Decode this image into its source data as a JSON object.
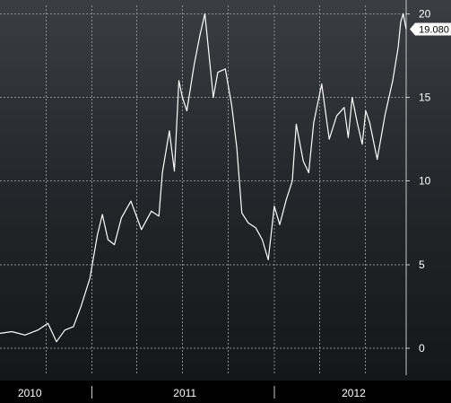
{
  "chart_data": {
    "type": "line",
    "title": "",
    "xlabel": "",
    "ylabel": "",
    "x_tick_labels": [
      "2010",
      "2011",
      "2012"
    ],
    "y_ticks": [
      0,
      5,
      10,
      15,
      20
    ],
    "ylim": [
      -1.6,
      20.5
    ],
    "xlim": [
      "2010-07-01",
      "2012-09-21"
    ],
    "grid": true,
    "last_value_label": "19.080",
    "colors": {
      "line": "#ffffff",
      "grid": "#8a8d92",
      "label_bg": "#ffffff",
      "label_text": "#000000"
    },
    "series": [
      {
        "x": [
          "2010-07-01",
          "2010-07-25",
          "2010-08-20",
          "2010-09-15",
          "2010-10-05",
          "2010-10-22",
          "2010-11-08",
          "2010-11-25",
          "2010-12-10",
          "2010-12-28",
          "2011-01-12",
          "2011-01-22",
          "2011-02-02",
          "2011-02-15",
          "2011-03-01",
          "2011-03-20",
          "2011-04-10",
          "2011-04-30",
          "2011-05-15",
          "2011-05-22",
          "2011-06-05",
          "2011-06-15",
          "2011-06-24",
          "2011-07-01",
          "2011-07-10",
          "2011-07-25",
          "2011-08-05",
          "2011-08-15",
          "2011-09-01",
          "2011-09-10",
          "2011-09-25",
          "2011-10-08",
          "2011-10-18",
          "2011-10-28",
          "2011-11-10",
          "2011-11-25",
          "2011-12-08",
          "2011-12-20",
          "2012-01-01",
          "2012-01-12",
          "2012-01-25",
          "2012-02-06",
          "2012-02-14",
          "2012-02-28",
          "2012-03-10",
          "2012-03-20",
          "2012-04-05",
          "2012-04-20",
          "2012-05-05",
          "2012-05-20",
          "2012-05-28",
          "2012-06-05",
          "2012-06-15",
          "2012-06-25",
          "2012-07-02",
          "2012-07-10",
          "2012-07-25",
          "2012-08-10",
          "2012-08-25",
          "2012-09-05",
          "2012-09-10",
          "2012-09-15",
          "2012-09-21"
        ],
        "values": [
          0.9,
          1.0,
          0.8,
          1.1,
          1.5,
          0.4,
          1.1,
          1.3,
          2.5,
          4.2,
          6.8,
          8.0,
          6.5,
          6.2,
          7.8,
          8.8,
          7.1,
          8.2,
          7.9,
          10.5,
          13.0,
          10.6,
          16.0,
          15.0,
          14.2,
          17.0,
          18.7,
          20.0,
          15.0,
          16.5,
          16.7,
          14.5,
          12.0,
          8.1,
          7.5,
          7.2,
          6.5,
          5.3,
          8.5,
          7.4,
          8.9,
          10.0,
          13.4,
          11.2,
          10.5,
          13.5,
          15.8,
          12.5,
          13.9,
          14.4,
          12.6,
          15.0,
          13.5,
          12.2,
          14.2,
          13.5,
          11.3,
          14.0,
          16.0,
          18.0,
          19.5,
          20.0,
          19.08
        ]
      }
    ]
  }
}
